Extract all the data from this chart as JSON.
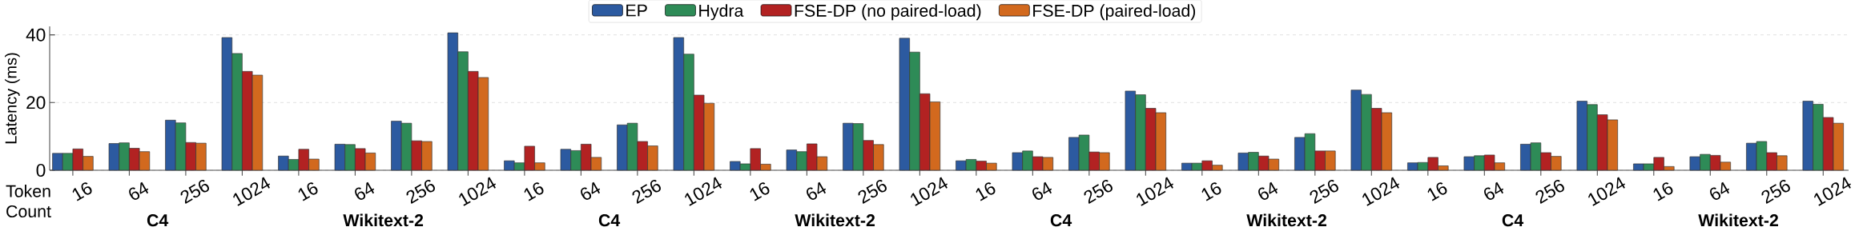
{
  "chart_data": {
    "type": "bar",
    "ylabel": "Latency (ms)",
    "xlabel": "Token Count",
    "categories": [
      "16",
      "64",
      "256",
      "1024",
      "16",
      "64",
      "256",
      "1024",
      "16",
      "64",
      "256",
      "1024",
      "16",
      "64",
      "256",
      "1024",
      "16",
      "64",
      "256",
      "1024",
      "16",
      "64",
      "256",
      "1024",
      "16",
      "64",
      "256",
      "1024",
      "16",
      "64",
      "256",
      "1024"
    ],
    "series": [
      {
        "name": "EP",
        "color": "#2c5aa0",
        "values": [
          5.0,
          7.9,
          14.8,
          39.2,
          4.2,
          7.7,
          14.5,
          40.6,
          2.8,
          6.2,
          13.4,
          39.2,
          2.6,
          6.0,
          13.9,
          39.0,
          2.8,
          5.2,
          9.7,
          23.4,
          2.1,
          5.1,
          9.7,
          23.7,
          2.2,
          4.0,
          7.7,
          20.4,
          1.9,
          4.0,
          8.0,
          20.4
        ]
      },
      {
        "name": "Hydra",
        "color": "#2e8b57",
        "values": [
          5.0,
          8.1,
          14.0,
          34.5,
          3.2,
          7.6,
          13.9,
          35.0,
          2.2,
          5.8,
          13.9,
          34.3,
          1.9,
          5.5,
          13.8,
          34.9,
          3.2,
          5.7,
          10.4,
          22.3,
          2.1,
          5.3,
          10.8,
          22.4,
          2.3,
          4.3,
          8.1,
          19.4,
          1.9,
          4.7,
          8.5,
          19.5
        ]
      },
      {
        "name": "FSE-DP (no paired-load)",
        "color": "#b22222",
        "values": [
          6.3,
          6.5,
          8.2,
          29.2,
          6.2,
          6.4,
          8.7,
          29.2,
          7.1,
          7.7,
          8.5,
          22.2,
          6.4,
          7.8,
          8.8,
          22.6,
          2.7,
          4.0,
          5.4,
          18.3,
          2.8,
          4.2,
          5.7,
          18.3,
          3.8,
          4.5,
          5.2,
          16.4,
          3.8,
          4.4,
          5.2,
          15.6
        ]
      },
      {
        "name": "FSE-DP (paired-load)",
        "color": "#d2691e",
        "values": [
          4.1,
          5.5,
          8.0,
          28.1,
          3.3,
          5.1,
          8.5,
          27.4,
          2.2,
          3.8,
          7.2,
          19.8,
          1.8,
          4.0,
          7.6,
          20.2,
          2.1,
          3.8,
          5.2,
          17.0,
          1.5,
          3.3,
          5.7,
          17.0,
          1.3,
          2.2,
          4.1,
          14.9,
          1.1,
          2.4,
          4.3,
          13.9
        ]
      }
    ],
    "ylim": [
      0,
      42.5
    ],
    "yticks": [
      0,
      20,
      40
    ],
    "grid": "y",
    "legend": "top",
    "annotations": [
      "C4",
      "Wikitext-2",
      "C4",
      "Wikitext-2",
      "C4",
      "Wikitext-2",
      "C4",
      "Wikitext-2"
    ]
  }
}
